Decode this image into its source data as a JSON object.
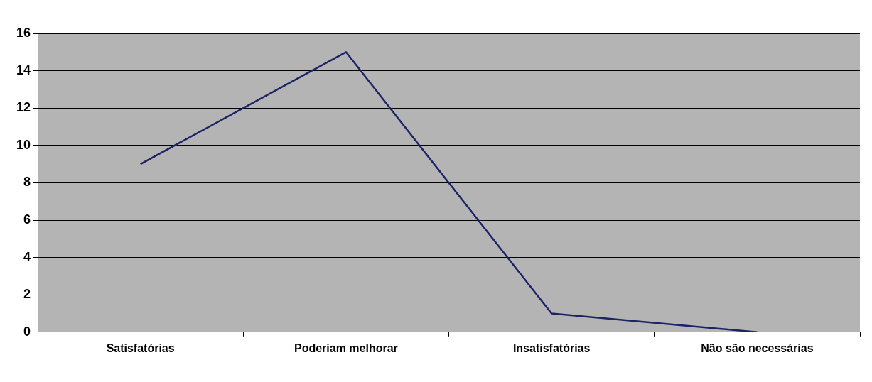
{
  "chart_data": {
    "type": "line",
    "categories": [
      "Satisfatórias",
      "Poderiam melhorar",
      "Insatisfatórias",
      "Não são necessárias"
    ],
    "series": [
      {
        "color": "#1c2466",
        "values": [
          9,
          15,
          1,
          0
        ]
      }
    ],
    "ylim": [
      0,
      16
    ],
    "yticks": [
      0,
      2,
      4,
      6,
      8,
      10,
      12,
      14,
      16
    ],
    "grid": "y",
    "legend": false,
    "marker": "none",
    "line_style": "solid"
  }
}
